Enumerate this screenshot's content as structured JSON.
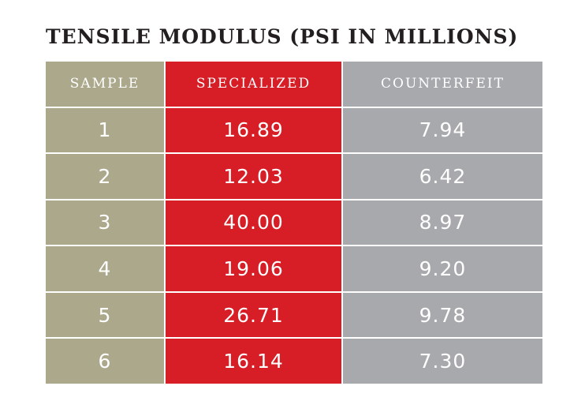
{
  "title": "TENSILE MODULUS (PSI IN MILLIONS)",
  "colors": {
    "sample": "#aca88c",
    "specialized": "#d71e26",
    "counterfeit": "#a7a9ac",
    "title": "#231f20"
  },
  "headers": [
    "SAMPLE",
    "SPECIALIZED",
    "COUNTERFEIT"
  ],
  "rows": [
    [
      "1",
      "16.89",
      "7.94"
    ],
    [
      "2",
      "12.03",
      "6.42"
    ],
    [
      "3",
      "40.00",
      "8.97"
    ],
    [
      "4",
      "19.06",
      "9.20"
    ],
    [
      "5",
      "26.71",
      "9.78"
    ],
    [
      "6",
      "16.14",
      "7.30"
    ]
  ],
  "chart_data": {
    "type": "table",
    "title": "TENSILE MODULUS (PSI IN MILLIONS)",
    "columns": [
      "SAMPLE",
      "SPECIALIZED",
      "COUNTERFEIT"
    ],
    "categories": [
      "1",
      "2",
      "3",
      "4",
      "5",
      "6"
    ],
    "series": [
      {
        "name": "SPECIALIZED",
        "values": [
          16.89,
          12.03,
          40.0,
          19.06,
          26.71,
          16.14
        ]
      },
      {
        "name": "COUNTERFEIT",
        "values": [
          7.94,
          6.42,
          8.97,
          9.2,
          9.78,
          7.3
        ]
      }
    ]
  }
}
